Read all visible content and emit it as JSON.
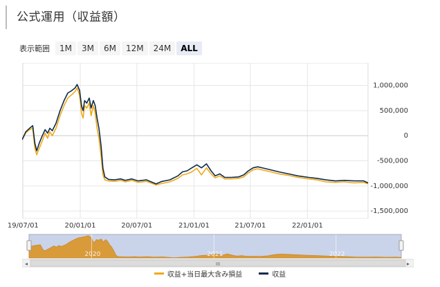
{
  "title": "公式運用（収益額）",
  "range": {
    "label": "表示範囲",
    "buttons": [
      "1M",
      "3M",
      "6M",
      "12M",
      "24M",
      "ALL"
    ],
    "active": "ALL"
  },
  "colors": {
    "profit": "#0f2b46",
    "total": "#f0a818",
    "grid": "#e6e6e6",
    "nav_fill": "#d99a3a",
    "nav_bg": "#c9d3ea"
  },
  "chart_data": {
    "type": "line",
    "xlabel": "",
    "ylabel": "",
    "x_ticks": [
      "19/07/01",
      "20/01/01",
      "20/07/01",
      "21/01/01",
      "21/07/01",
      "22/01/01"
    ],
    "y_ticks": [
      "1,000,000",
      "500,000",
      "0",
      "-500,000",
      "-1,000,000",
      "-1,500,000"
    ],
    "ylim": [
      -1650000,
      1450000
    ],
    "xlim": [
      "2019-06-28",
      "2022-07-15"
    ],
    "grid": true,
    "legend_position": "bottom",
    "series": [
      {
        "name": "収益",
        "points": [
          [
            "2019-06-28",
            -80000
          ],
          [
            "2019-07-10",
            80000
          ],
          [
            "2019-07-22",
            150000
          ],
          [
            "2019-08-01",
            200000
          ],
          [
            "2019-08-08",
            -150000
          ],
          [
            "2019-08-14",
            -300000
          ],
          [
            "2019-08-22",
            -150000
          ],
          [
            "2019-09-01",
            0
          ],
          [
            "2019-09-10",
            120000
          ],
          [
            "2019-09-18",
            50000
          ],
          [
            "2019-09-25",
            150000
          ],
          [
            "2019-10-03",
            100000
          ],
          [
            "2019-10-15",
            250000
          ],
          [
            "2019-10-28",
            500000
          ],
          [
            "2019-11-10",
            700000
          ],
          [
            "2019-11-22",
            850000
          ],
          [
            "2019-12-05",
            900000
          ],
          [
            "2019-12-15",
            950000
          ],
          [
            "2019-12-22",
            1020000
          ],
          [
            "2019-12-30",
            900000
          ],
          [
            "2020-01-05",
            600000
          ],
          [
            "2020-01-10",
            500000
          ],
          [
            "2020-01-15",
            700000
          ],
          [
            "2020-01-22",
            650000
          ],
          [
            "2020-01-30",
            750000
          ],
          [
            "2020-02-05",
            550000
          ],
          [
            "2020-02-12",
            700000
          ],
          [
            "2020-02-18",
            600000
          ],
          [
            "2020-02-24",
            350000
          ],
          [
            "2020-03-01",
            150000
          ],
          [
            "2020-03-08",
            -200000
          ],
          [
            "2020-03-14",
            -650000
          ],
          [
            "2020-03-20",
            -820000
          ],
          [
            "2020-04-01",
            -870000
          ],
          [
            "2020-04-20",
            -880000
          ],
          [
            "2020-05-10",
            -860000
          ],
          [
            "2020-05-25",
            -890000
          ],
          [
            "2020-06-15",
            -860000
          ],
          [
            "2020-07-05",
            -900000
          ],
          [
            "2020-08-01",
            -880000
          ],
          [
            "2020-09-01",
            -960000
          ],
          [
            "2020-09-20",
            -910000
          ],
          [
            "2020-10-15",
            -880000
          ],
          [
            "2020-11-10",
            -800000
          ],
          [
            "2020-11-25",
            -720000
          ],
          [
            "2020-12-10",
            -700000
          ],
          [
            "2020-12-25",
            -640000
          ],
          [
            "2021-01-10",
            -580000
          ],
          [
            "2021-01-25",
            -640000
          ],
          [
            "2021-02-10",
            -560000
          ],
          [
            "2021-02-25",
            -700000
          ],
          [
            "2021-03-10",
            -800000
          ],
          [
            "2021-03-25",
            -760000
          ],
          [
            "2021-04-10",
            -830000
          ],
          [
            "2021-05-01",
            -830000
          ],
          [
            "2021-05-25",
            -820000
          ],
          [
            "2021-06-10",
            -780000
          ],
          [
            "2021-06-25",
            -700000
          ],
          [
            "2021-07-10",
            -640000
          ],
          [
            "2021-07-25",
            -620000
          ],
          [
            "2021-08-15",
            -650000
          ],
          [
            "2021-09-05",
            -680000
          ],
          [
            "2021-10-01",
            -720000
          ],
          [
            "2021-11-01",
            -760000
          ],
          [
            "2021-12-01",
            -800000
          ],
          [
            "2022-01-05",
            -830000
          ],
          [
            "2022-02-01",
            -850000
          ],
          [
            "2022-03-01",
            -880000
          ],
          [
            "2022-04-01",
            -900000
          ],
          [
            "2022-05-01",
            -890000
          ],
          [
            "2022-06-01",
            -900000
          ],
          [
            "2022-07-01",
            -900000
          ],
          [
            "2022-07-15",
            -940000
          ]
        ]
      },
      {
        "name": "収益+当日最大含み損益",
        "points": [
          [
            "2019-06-28",
            -80000
          ],
          [
            "2019-07-10",
            60000
          ],
          [
            "2019-07-22",
            120000
          ],
          [
            "2019-08-01",
            150000
          ],
          [
            "2019-08-08",
            -250000
          ],
          [
            "2019-08-14",
            -380000
          ],
          [
            "2019-08-22",
            -250000
          ],
          [
            "2019-09-01",
            -100000
          ],
          [
            "2019-09-10",
            50000
          ],
          [
            "2019-09-18",
            -50000
          ],
          [
            "2019-09-25",
            80000
          ],
          [
            "2019-10-03",
            0
          ],
          [
            "2019-10-15",
            150000
          ],
          [
            "2019-10-28",
            400000
          ],
          [
            "2019-11-10",
            600000
          ],
          [
            "2019-11-22",
            750000
          ],
          [
            "2019-12-05",
            820000
          ],
          [
            "2019-12-15",
            880000
          ],
          [
            "2019-12-22",
            950000
          ],
          [
            "2019-12-30",
            800000
          ],
          [
            "2020-01-05",
            450000
          ],
          [
            "2020-01-10",
            350000
          ],
          [
            "2020-01-15",
            600000
          ],
          [
            "2020-01-22",
            550000
          ],
          [
            "2020-01-30",
            650000
          ],
          [
            "2020-02-05",
            400000
          ],
          [
            "2020-02-12",
            600000
          ],
          [
            "2020-02-18",
            450000
          ],
          [
            "2020-02-24",
            150000
          ],
          [
            "2020-03-01",
            -50000
          ],
          [
            "2020-03-08",
            -400000
          ],
          [
            "2020-03-14",
            -780000
          ],
          [
            "2020-03-20",
            -880000
          ],
          [
            "2020-04-01",
            -900000
          ],
          [
            "2020-04-20",
            -910000
          ],
          [
            "2020-05-10",
            -890000
          ],
          [
            "2020-05-25",
            -920000
          ],
          [
            "2020-06-15",
            -890000
          ],
          [
            "2020-07-05",
            -930000
          ],
          [
            "2020-08-01",
            -910000
          ],
          [
            "2020-09-01",
            -980000
          ],
          [
            "2020-09-20",
            -950000
          ],
          [
            "2020-10-15",
            -920000
          ],
          [
            "2020-11-10",
            -850000
          ],
          [
            "2020-11-25",
            -780000
          ],
          [
            "2020-12-10",
            -760000
          ],
          [
            "2020-12-25",
            -720000
          ],
          [
            "2021-01-10",
            -650000
          ],
          [
            "2021-01-25",
            -780000
          ],
          [
            "2021-02-10",
            -640000
          ],
          [
            "2021-02-25",
            -760000
          ],
          [
            "2021-03-10",
            -840000
          ],
          [
            "2021-03-25",
            -800000
          ],
          [
            "2021-04-10",
            -860000
          ],
          [
            "2021-05-01",
            -860000
          ],
          [
            "2021-05-25",
            -850000
          ],
          [
            "2021-06-10",
            -820000
          ],
          [
            "2021-06-25",
            -740000
          ],
          [
            "2021-07-10",
            -680000
          ],
          [
            "2021-07-25",
            -660000
          ],
          [
            "2021-08-15",
            -690000
          ],
          [
            "2021-09-05",
            -720000
          ],
          [
            "2021-10-01",
            -760000
          ],
          [
            "2021-11-01",
            -790000
          ],
          [
            "2021-12-01",
            -830000
          ],
          [
            "2022-01-05",
            -860000
          ],
          [
            "2022-02-01",
            -880000
          ],
          [
            "2022-03-01",
            -920000
          ],
          [
            "2022-04-01",
            -930000
          ],
          [
            "2022-05-01",
            -920000
          ],
          [
            "2022-06-01",
            -940000
          ],
          [
            "2022-07-01",
            -930000
          ],
          [
            "2022-07-15",
            -960000
          ]
        ]
      }
    ]
  },
  "navigator": {
    "year_labels": [
      "2020",
      "2021",
      "2022"
    ],
    "scroll_grip": "III"
  }
}
